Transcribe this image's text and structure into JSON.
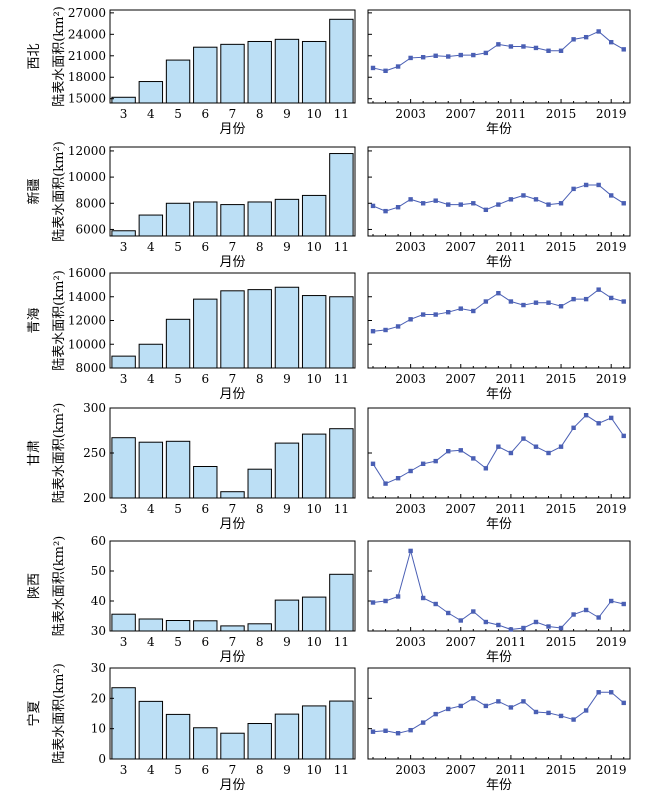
{
  "chart_data": [
    {
      "type": "bar",
      "region": "西北",
      "ylabel": "陆表水面积(km²)",
      "xlabel": "月份",
      "categories": [
        "3",
        "4",
        "5",
        "6",
        "7",
        "8",
        "9",
        "10",
        "11"
      ],
      "values": [
        15200,
        17400,
        20400,
        22200,
        22600,
        23000,
        23300,
        23000,
        26100
      ],
      "ylim": [
        14400,
        27400
      ],
      "yticks": [
        15000,
        18000,
        21000,
        24000,
        27000
      ],
      "color": "#bcdff5",
      "grid": false
    },
    {
      "type": "line",
      "region": "西北",
      "xlabel": "年份",
      "x": [
        2000,
        2001,
        2002,
        2003,
        2004,
        2005,
        2006,
        2007,
        2008,
        2009,
        2010,
        2011,
        2012,
        2013,
        2014,
        2015,
        2016,
        2017,
        2018,
        2019,
        2020
      ],
      "values": [
        19300,
        18900,
        19500,
        20700,
        20800,
        21000,
        20900,
        21100,
        21100,
        21400,
        22600,
        22300,
        22300,
        22100,
        21700,
        21700,
        23300,
        23600,
        24400,
        22900,
        21900
      ],
      "xticks": [
        2003,
        2007,
        2011,
        2015,
        2019
      ],
      "xlim": [
        1999.6,
        2020.5
      ],
      "ylim": [
        14400,
        27400
      ],
      "color": "#4a5fb4",
      "grid": false
    },
    {
      "type": "bar",
      "region": "新疆",
      "ylabel": "陆表水面积(km²)",
      "xlabel": "月份",
      "categories": [
        "3",
        "4",
        "5",
        "6",
        "7",
        "8",
        "9",
        "10",
        "11"
      ],
      "values": [
        5900,
        7100,
        8000,
        8100,
        7900,
        8100,
        8300,
        8600,
        11800
      ],
      "ylim": [
        5500,
        12300
      ],
      "yticks": [
        6000,
        8000,
        10000,
        12000
      ],
      "color": "#bcdff5",
      "grid": false
    },
    {
      "type": "line",
      "region": "新疆",
      "xlabel": "年份",
      "x": [
        2000,
        2001,
        2002,
        2003,
        2004,
        2005,
        2006,
        2007,
        2008,
        2009,
        2010,
        2011,
        2012,
        2013,
        2014,
        2015,
        2016,
        2017,
        2018,
        2019,
        2020
      ],
      "values": [
        7800,
        7400,
        7700,
        8300,
        8000,
        8200,
        7900,
        7900,
        8000,
        7500,
        7900,
        8300,
        8600,
        8300,
        7900,
        8000,
        9100,
        9400,
        9400,
        8600,
        8000
      ],
      "xticks": [
        2003,
        2007,
        2011,
        2015,
        2019
      ],
      "xlim": [
        1999.6,
        2020.5
      ],
      "ylim": [
        5500,
        12300
      ],
      "color": "#4a5fb4",
      "grid": false
    },
    {
      "type": "bar",
      "region": "青海",
      "ylabel": "陆表水面积(km²)",
      "xlabel": "月份",
      "categories": [
        "3",
        "4",
        "5",
        "6",
        "7",
        "8",
        "9",
        "10",
        "11"
      ],
      "values": [
        9000,
        10000,
        12100,
        13800,
        14500,
        14600,
        14800,
        14100,
        14000
      ],
      "ylim": [
        8000,
        16000
      ],
      "yticks": [
        8000,
        10000,
        12000,
        14000,
        16000
      ],
      "color": "#bcdff5",
      "grid": false
    },
    {
      "type": "line",
      "region": "青海",
      "xlabel": "年份",
      "x": [
        2000,
        2001,
        2002,
        2003,
        2004,
        2005,
        2006,
        2007,
        2008,
        2009,
        2010,
        2011,
        2012,
        2013,
        2014,
        2015,
        2016,
        2017,
        2018,
        2019,
        2020
      ],
      "values": [
        11100,
        11200,
        11500,
        12100,
        12500,
        12500,
        12700,
        13000,
        12800,
        13600,
        14300,
        13600,
        13300,
        13500,
        13500,
        13200,
        13800,
        13800,
        14600,
        13900,
        13600
      ],
      "xticks": [
        2003,
        2007,
        2011,
        2015,
        2019
      ],
      "xlim": [
        1999.6,
        2020.5
      ],
      "ylim": [
        8000,
        16000
      ],
      "color": "#4a5fb4",
      "grid": false
    },
    {
      "type": "bar",
      "region": "甘肃",
      "ylabel": "陆表水面积(km²)",
      "xlabel": "月份",
      "categories": [
        "3",
        "4",
        "5",
        "6",
        "7",
        "8",
        "9",
        "10",
        "11"
      ],
      "values": [
        267,
        262,
        263,
        235,
        207,
        232,
        261,
        271,
        277
      ],
      "ylim": [
        200,
        300
      ],
      "yticks": [
        200,
        250,
        300
      ],
      "color": "#bcdff5",
      "grid": false
    },
    {
      "type": "line",
      "region": "甘肃",
      "xlabel": "年份",
      "x": [
        2000,
        2001,
        2002,
        2003,
        2004,
        2005,
        2006,
        2007,
        2008,
        2009,
        2010,
        2011,
        2012,
        2013,
        2014,
        2015,
        2016,
        2017,
        2018,
        2019,
        2020
      ],
      "values": [
        238,
        216,
        222,
        230,
        238,
        241,
        252,
        253,
        244,
        233,
        257,
        250,
        266,
        257,
        250,
        257,
        278,
        292,
        283,
        289,
        269
      ],
      "xticks": [
        2003,
        2007,
        2011,
        2015,
        2019
      ],
      "xlim": [
        1999.6,
        2020.5
      ],
      "ylim": [
        200,
        300
      ],
      "color": "#4a5fb4",
      "grid": false
    },
    {
      "type": "bar",
      "region": "陕西",
      "ylabel": "陆表水面积(km²)",
      "xlabel": "月份",
      "categories": [
        "3",
        "4",
        "5",
        "6",
        "7",
        "8",
        "9",
        "10",
        "11"
      ],
      "values": [
        35.6,
        34,
        33.5,
        33.4,
        31.7,
        32.4,
        40.3,
        41.3,
        48.9
      ],
      "ylim": [
        30,
        60
      ],
      "yticks": [
        30,
        40,
        50,
        60
      ],
      "color": "#bcdff5",
      "grid": false
    },
    {
      "type": "line",
      "region": "陕西",
      "xlabel": "年份",
      "x": [
        2000,
        2001,
        2002,
        2003,
        2004,
        2005,
        2006,
        2007,
        2008,
        2009,
        2010,
        2011,
        2012,
        2013,
        2014,
        2015,
        2016,
        2017,
        2018,
        2019,
        2020
      ],
      "values": [
        39.5,
        40,
        41.5,
        56.7,
        41,
        39,
        36,
        33.5,
        36.5,
        33,
        32,
        30.5,
        31,
        33,
        31.5,
        31,
        35.5,
        37,
        34.5,
        40,
        39
      ],
      "xticks": [
        2003,
        2007,
        2011,
        2015,
        2019
      ],
      "xlim": [
        1999.6,
        2020.5
      ],
      "ylim": [
        30,
        60
      ],
      "color": "#4a5fb4",
      "grid": false
    },
    {
      "type": "bar",
      "region": "宁夏",
      "ylabel": "陆表水面积(km²)",
      "xlabel": "月份",
      "categories": [
        "3",
        "4",
        "5",
        "6",
        "7",
        "8",
        "9",
        "10",
        "11"
      ],
      "values": [
        23.5,
        19,
        14.7,
        10.3,
        8.5,
        11.7,
        14.8,
        17.5,
        19.1
      ],
      "ylim": [
        0,
        30
      ],
      "yticks": [
        0,
        10,
        20,
        30
      ],
      "color": "#bcdff5",
      "grid": false
    },
    {
      "type": "line",
      "region": "宁夏",
      "xlabel": "年份",
      "x": [
        2000,
        2001,
        2002,
        2003,
        2004,
        2005,
        2006,
        2007,
        2008,
        2009,
        2010,
        2011,
        2012,
        2013,
        2014,
        2015,
        2016,
        2017,
        2018,
        2019,
        2020
      ],
      "values": [
        9,
        9.3,
        8.5,
        9.5,
        12,
        14.8,
        16.5,
        17.5,
        20,
        17.5,
        19,
        17,
        19,
        15.5,
        15.2,
        14.2,
        13,
        16,
        22,
        22,
        18.5
      ],
      "xticks": [
        2003,
        2007,
        2011,
        2015,
        2019
      ],
      "xlim": [
        1999.6,
        2020.5
      ],
      "ylim": [
        0,
        30
      ],
      "color": "#4a5fb4",
      "grid": false
    }
  ]
}
